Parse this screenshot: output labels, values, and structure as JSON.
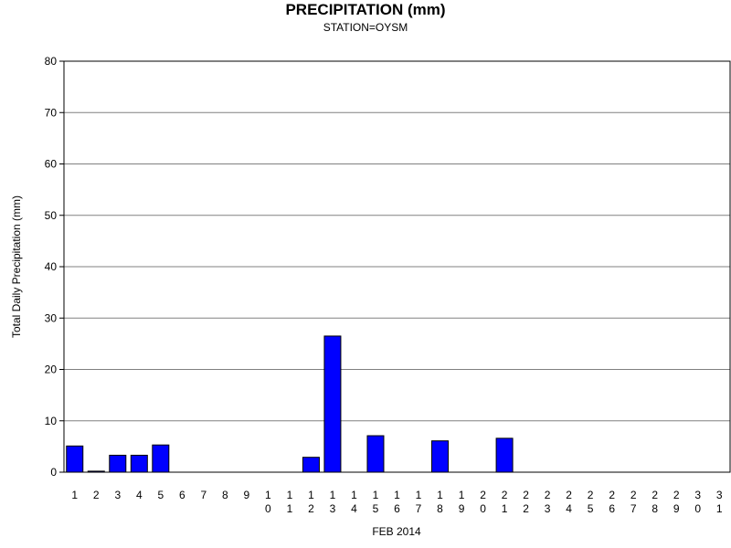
{
  "chart_data": {
    "type": "bar",
    "title": "PRECIPITATION (mm)",
    "subtitle": "STATION=OYSM",
    "xlabel": "FEB 2014",
    "ylabel": "Total Daily Precipitation (mm)",
    "ylim": [
      0,
      80
    ],
    "yticks": [
      0,
      10,
      20,
      30,
      40,
      50,
      60,
      70,
      80
    ],
    "grid": true,
    "bar_color": "#0000ff",
    "categories": [
      "1",
      "2",
      "3",
      "4",
      "5",
      "6",
      "7",
      "8",
      "9",
      "10",
      "11",
      "12",
      "13",
      "14",
      "15",
      "16",
      "17",
      "18",
      "19",
      "20",
      "21",
      "22",
      "23",
      "24",
      "25",
      "26",
      "27",
      "28",
      "29",
      "30",
      "31"
    ],
    "values": [
      5.1,
      0.2,
      3.3,
      3.3,
      5.3,
      0,
      0,
      0,
      0,
      0,
      0,
      2.9,
      26.5,
      0,
      7.1,
      0,
      0,
      6.1,
      0,
      0,
      6.6,
      0,
      0,
      0,
      0,
      0,
      0,
      0,
      0,
      0,
      0
    ]
  }
}
